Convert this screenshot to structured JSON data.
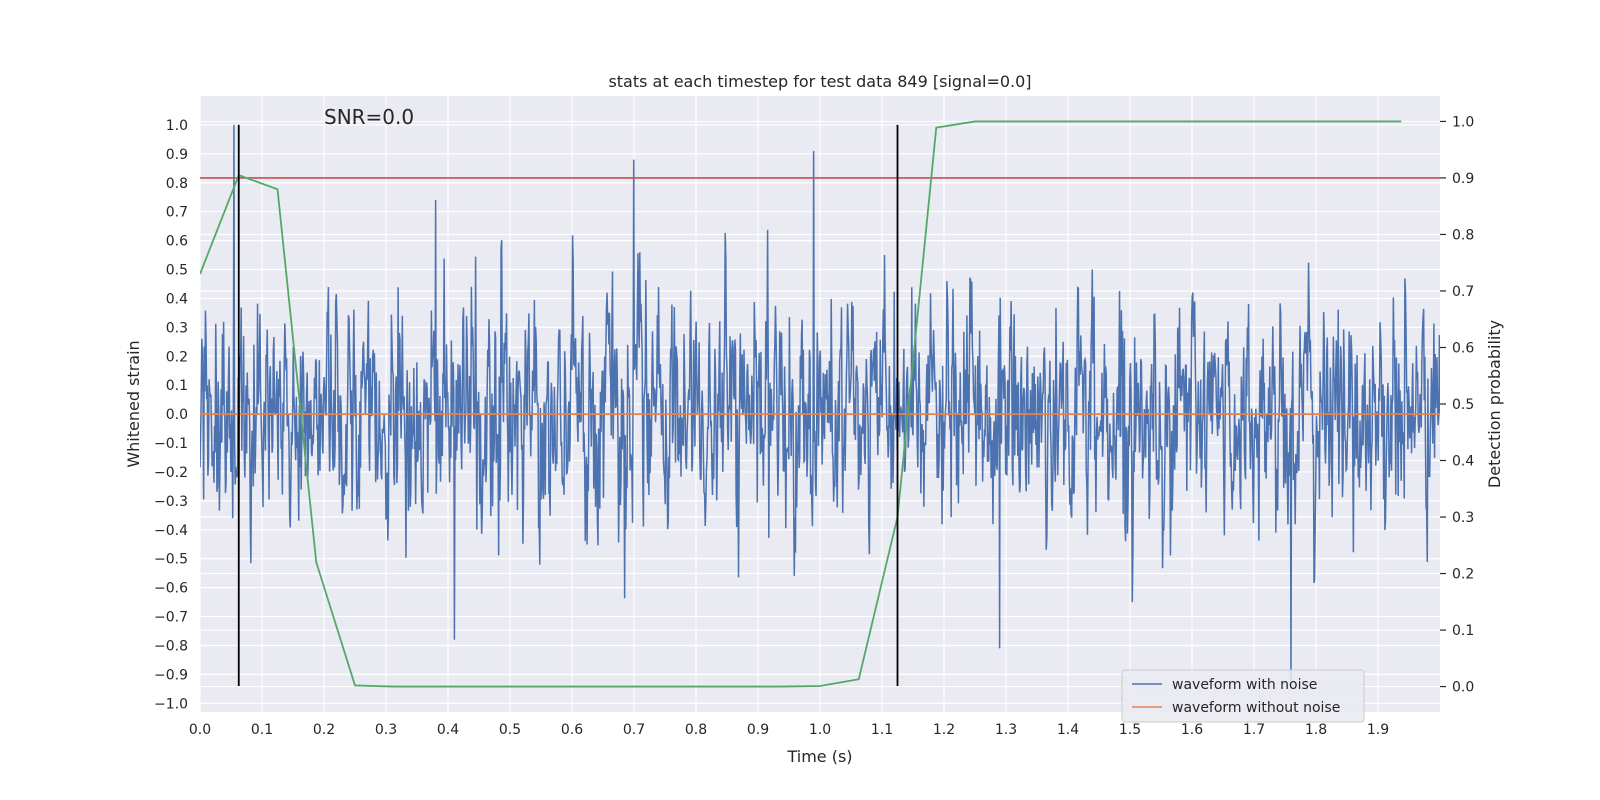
{
  "chart_data": {
    "type": "line",
    "title": "stats at each timestep for test data 849 [signal=0.0]",
    "xlabel": "Time (s)",
    "ylabel_left": "Whitened strain",
    "ylabel_right": "Detection probability",
    "xlim": [
      0.0,
      2.0
    ],
    "ylim_left": [
      -1.03,
      1.1
    ],
    "ylim_right": [
      -0.045,
      1.045
    ],
    "x_ticks": [
      "0.0",
      "0.1",
      "0.2",
      "0.3",
      "0.4",
      "0.5",
      "0.6",
      "0.7",
      "0.8",
      "0.9",
      "1.0",
      "1.1",
      "1.2",
      "1.3",
      "1.4",
      "1.5",
      "1.6",
      "1.7",
      "1.8",
      "1.9"
    ],
    "y_ticks_left": [
      "1.0",
      "0.9",
      "0.8",
      "0.7",
      "0.6",
      "0.5",
      "0.4",
      "0.3",
      "0.2",
      "0.1",
      "0.0",
      "−0.1",
      "−0.2",
      "−0.3",
      "−0.4",
      "−0.5",
      "−0.6",
      "−0.7",
      "−0.8",
      "−0.9",
      "−1.0"
    ],
    "y_ticks_right": [
      "1.0",
      "0.9",
      "0.8",
      "0.7",
      "0.6",
      "0.5",
      "0.4",
      "0.3",
      "0.2",
      "0.1",
      "0.0"
    ],
    "grid": true,
    "annotation": "SNR=0.0",
    "legend": {
      "placement": "lower-right",
      "entries": [
        {
          "label": "waveform with noise",
          "color": "#4c72b0"
        },
        {
          "label": "waveform without noise",
          "color": "#dd8452"
        }
      ]
    },
    "noise_waveform": {
      "name": "waveform with noise",
      "color": "#4c72b0",
      "x_start": 0.0,
      "x_end": 2.0,
      "samples": 2048,
      "approx_std": 0.27,
      "peaks": [
        {
          "x": 0.055,
          "y": 1.0
        },
        {
          "x": 0.7,
          "y": 0.88
        },
        {
          "x": 0.99,
          "y": 0.91
        },
        {
          "x": 0.38,
          "y": 0.74
        },
        {
          "x": 1.76,
          "y": -0.92
        },
        {
          "x": 0.41,
          "y": -0.78
        },
        {
          "x": 1.29,
          "y": -0.81
        }
      ]
    },
    "clean_waveform": {
      "name": "waveform without noise",
      "color": "#dd8452",
      "x": [
        0.0,
        2.0
      ],
      "y": [
        0.0,
        0.0
      ]
    },
    "detection_probability": {
      "color": "#55a868",
      "x": [
        0.0,
        0.0625,
        0.125,
        0.1875,
        0.25,
        0.3125,
        0.375,
        0.4375,
        0.5,
        0.5625,
        0.625,
        0.6875,
        0.75,
        0.8125,
        0.875,
        0.9375,
        1.0,
        1.0625,
        1.125,
        1.1875,
        1.25,
        1.3125,
        1.375,
        1.4375,
        1.5,
        1.5625,
        1.625,
        1.6875,
        1.75,
        1.8125,
        1.875,
        1.9375
      ],
      "y": [
        0.73,
        0.905,
        0.88,
        0.22,
        0.002,
        0.0,
        0.0,
        0.0,
        0.0,
        0.0,
        0.0,
        0.0,
        0.0,
        0.0,
        0.0,
        0.0,
        0.001,
        0.013,
        0.3,
        0.989,
        1.0,
        1.0,
        1.0,
        1.0,
        1.0,
        1.0,
        1.0,
        1.0,
        1.0,
        1.0,
        1.0,
        1.0
      ]
    },
    "threshold": {
      "axis": "right",
      "y": 0.9,
      "color": "#c44e52"
    },
    "vertical_markers": {
      "color": "#000000",
      "lines": [
        {
          "x": 0.0625,
          "y_from": -0.94,
          "y_to": 1.0
        },
        {
          "x": 1.125,
          "y_from": -0.94,
          "y_to": 1.0
        }
      ]
    }
  }
}
